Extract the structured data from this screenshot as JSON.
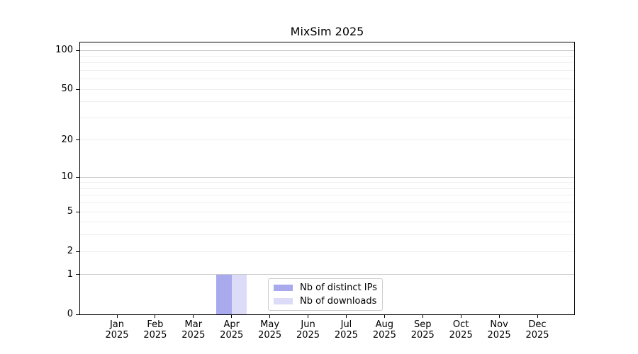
{
  "chart_data": {
    "type": "bar",
    "title": "MixSim 2025",
    "x_axis": {
      "months": [
        "Jan",
        "Feb",
        "Mar",
        "Apr",
        "May",
        "Jun",
        "Jul",
        "Aug",
        "Sep",
        "Oct",
        "Nov",
        "Dec"
      ],
      "year": "2025"
    },
    "y_axis": {
      "scale": "log1p",
      "ticks": [
        0,
        1,
        2,
        5,
        10,
        20,
        50,
        100
      ],
      "grid_major": [
        1,
        10,
        100
      ],
      "grid_minor": [
        2,
        3,
        4,
        5,
        6,
        7,
        8,
        9,
        20,
        30,
        40,
        50,
        60,
        70,
        80,
        90,
        110
      ],
      "ylim": [
        0,
        114.8
      ]
    },
    "series": [
      {
        "name": "Nb of distinct IPs",
        "color": "#a9a9ee",
        "values": [
          0,
          0,
          0,
          1,
          0,
          0,
          0,
          0,
          0,
          0,
          0,
          0
        ]
      },
      {
        "name": "Nb of downloads",
        "color": "#dcdcf8",
        "values": [
          0,
          0,
          0,
          1,
          0,
          0,
          0,
          0,
          0,
          0,
          0,
          0
        ]
      }
    ],
    "legend": {
      "position": "lower center",
      "entries": [
        "Nb of distinct IPs",
        "Nb of downloads"
      ]
    },
    "grid": true,
    "style": {
      "grid_major_color": "#c8c8c8",
      "grid_minor_color": "#efefef",
      "spine_color": "#000000",
      "text_color": "#000000",
      "background": "#ffffff"
    }
  }
}
